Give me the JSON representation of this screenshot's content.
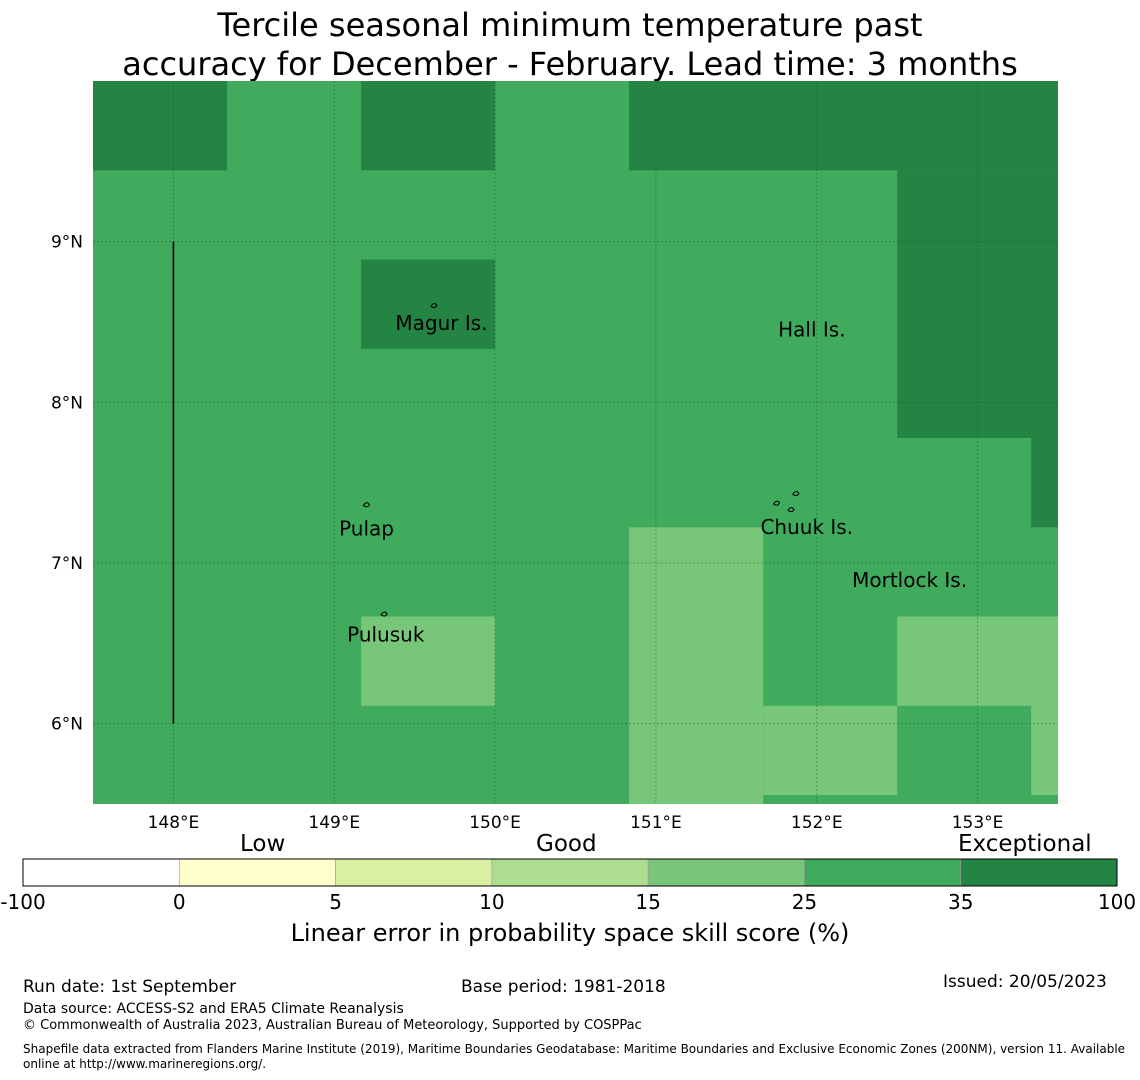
{
  "title": {
    "line1": "Tercile seasonal minimum temperature past",
    "line2": "accuracy for December - February. Lead time: 3 months"
  },
  "map": {
    "lon_range": [
      147.5,
      153.5
    ],
    "lat_range": [
      5.5,
      10.0
    ],
    "lon_ticks": [
      {
        "value": 148,
        "label": "148°E"
      },
      {
        "value": 149,
        "label": "149°E"
      },
      {
        "value": 150,
        "label": "150°E"
      },
      {
        "value": 151,
        "label": "151°E"
      },
      {
        "value": 152,
        "label": "152°E"
      },
      {
        "value": 153,
        "label": "153°E"
      }
    ],
    "lat_ticks": [
      {
        "value": 9,
        "label": "9°N"
      },
      {
        "value": 8,
        "label": "8°N"
      },
      {
        "value": 7,
        "label": "7°N"
      },
      {
        "value": 6,
        "label": "6°N"
      }
    ],
    "base_category_color": "#41ab5d",
    "cells": [
      {
        "lon": [
          147.5,
          148.333
        ],
        "lat": [
          9.444,
          10.0
        ],
        "color": "#238443"
      },
      {
        "lon": [
          149.167,
          150.0
        ],
        "lat": [
          9.444,
          10.0
        ],
        "color": "#238443"
      },
      {
        "lon": [
          150.833,
          153.5
        ],
        "lat": [
          9.444,
          10.0
        ],
        "color": "#238443"
      },
      {
        "lon": [
          152.5,
          153.5
        ],
        "lat": [
          7.778,
          9.444
        ],
        "color": "#238443"
      },
      {
        "lon": [
          153.333,
          153.5
        ],
        "lat": [
          7.222,
          7.778
        ],
        "color": "#238443"
      },
      {
        "lon": [
          149.167,
          150.0
        ],
        "lat": [
          8.333,
          8.889
        ],
        "color": "#238443"
      },
      {
        "lon": [
          150.833,
          151.667
        ],
        "lat": [
          5.5,
          7.222
        ],
        "color": "#78c679"
      },
      {
        "lon": [
          149.167,
          150.0
        ],
        "lat": [
          6.111,
          6.667
        ],
        "color": "#78c679"
      },
      {
        "lon": [
          151.667,
          152.5
        ],
        "lat": [
          5.556,
          6.111
        ],
        "color": "#78c679"
      },
      {
        "lon": [
          152.5,
          153.5
        ],
        "lat": [
          6.111,
          6.667
        ],
        "color": "#78c679"
      },
      {
        "lon": [
          153.333,
          153.5
        ],
        "lat": [
          5.556,
          6.111
        ],
        "color": "#78c679"
      }
    ],
    "boundary_line": {
      "lon": 148.0,
      "lat": [
        6.0,
        9.0
      ]
    },
    "places": [
      {
        "name": "Magur Is.",
        "lon": 149.38,
        "lat": 8.45
      },
      {
        "name": "Hall Is.",
        "lon": 151.76,
        "lat": 8.41
      },
      {
        "name": "Pulap",
        "lon": 149.03,
        "lat": 7.17
      },
      {
        "name": "Chuuk Is.",
        "lon": 151.65,
        "lat": 7.18
      },
      {
        "name": "Mortlock Is.",
        "lon": 152.22,
        "lat": 6.85
      },
      {
        "name": "Pulusuk",
        "lon": 149.08,
        "lat": 6.51
      }
    ],
    "islands": [
      {
        "lon": 149.62,
        "lat": 8.61
      },
      {
        "lon": 149.2,
        "lat": 7.37
      },
      {
        "lon": 149.31,
        "lat": 6.69
      },
      {
        "lon": 151.75,
        "lat": 7.38
      },
      {
        "lon": 151.87,
        "lat": 7.44
      },
      {
        "lon": 151.84,
        "lat": 7.34
      }
    ]
  },
  "colorbar": {
    "categories": {
      "low": "Low",
      "good": "Good",
      "exceptional": "Exceptional"
    },
    "segments": [
      {
        "from": "-100",
        "to": "0",
        "color": "#ffffff"
      },
      {
        "from": "0",
        "to": "5",
        "color": "#ffffcc"
      },
      {
        "from": "5",
        "to": "10",
        "color": "#d9f0a3"
      },
      {
        "from": "10",
        "to": "15",
        "color": "#addd8e"
      },
      {
        "from": "15",
        "to": "25",
        "color": "#78c679"
      },
      {
        "from": "25",
        "to": "35",
        "color": "#41ab5d"
      },
      {
        "from": "35",
        "to": "100",
        "color": "#238443"
      }
    ],
    "ticks": [
      "-100",
      "0",
      "5",
      "10",
      "15",
      "25",
      "35",
      "100"
    ],
    "label": "Linear error in probability space skill score (%)"
  },
  "footer": {
    "run_date": "Run date: 1st September",
    "base_period": "Base period: 1981-2018",
    "issued": "Issued: 20/05/2023",
    "data_source": "Data source: ACCESS-S2 and ERA5 Climate Reanalysis",
    "copyright": "© Commonwealth of Australia 2023, Australian Bureau of Meteorology, Supported by COSPPac",
    "shapefile": "Shapefile data extracted from Flanders Marine Institute (2019), Maritime Boundaries Geodatabase: Maritime Boundaries and Exclusive Economic Zones (200NM), version 11. Available online at http://www.marineregions.org/."
  }
}
